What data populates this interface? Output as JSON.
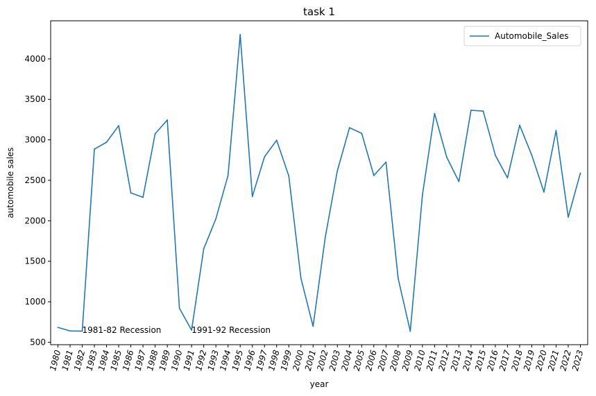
{
  "chart_data": {
    "type": "line",
    "title": "task 1",
    "xlabel": "year",
    "ylabel": "automobile sales",
    "x": [
      1980,
      1981,
      1982,
      1983,
      1984,
      1985,
      1986,
      1987,
      1988,
      1989,
      1990,
      1991,
      1992,
      1993,
      1994,
      1995,
      1996,
      1997,
      1998,
      1999,
      2000,
      2001,
      2002,
      2003,
      2004,
      2005,
      2006,
      2007,
      2008,
      2009,
      2010,
      2011,
      2012,
      2013,
      2014,
      2015,
      2016,
      2017,
      2018,
      2019,
      2020,
      2021,
      2022,
      2023
    ],
    "series": [
      {
        "name": "Automobile_Sales",
        "color": "#1f77b4",
        "values": [
          683,
          640,
          638,
          2886,
          2970,
          3175,
          2345,
          2290,
          3075,
          3245,
          920,
          650,
          1655,
          2025,
          2560,
          4300,
          2300,
          2790,
          2995,
          2555,
          1290,
          697,
          1795,
          2620,
          3150,
          3080,
          2560,
          2725,
          1290,
          635,
          2320,
          3325,
          2785,
          2485,
          3365,
          3355,
          2810,
          2530,
          3180,
          2810,
          2355,
          3115,
          2045,
          2590
        ]
      }
    ],
    "yticks": [
      500,
      1000,
      1500,
      2000,
      2500,
      3000,
      3500,
      4000
    ],
    "ylim": [
      470,
      4470
    ],
    "xlim": [
      1979.3,
      1982.1
    ],
    "annotations": [
      {
        "text": "1981-82 Recession",
        "x": 1982,
        "y": 650
      },
      {
        "text": "1991-92 Recession",
        "x": 1991,
        "y": 650
      }
    ],
    "legend": {
      "placement": "top-right"
    },
    "grid": false
  }
}
